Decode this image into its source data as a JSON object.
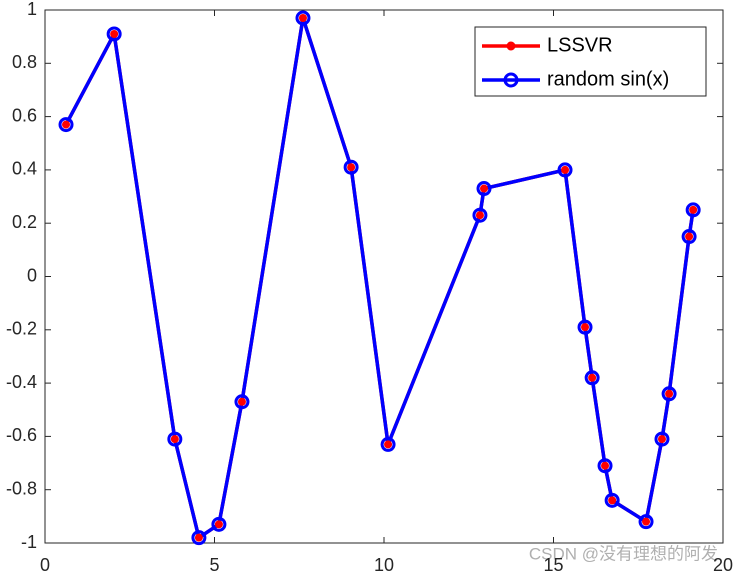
{
  "chart_data": {
    "type": "line",
    "x": [
      0.62,
      2.04,
      3.83,
      4.54,
      5.13,
      5.81,
      7.61,
      9.03,
      10.12,
      12.83,
      12.95,
      15.34,
      15.93,
      16.14,
      16.52,
      16.73,
      17.73,
      18.2,
      18.41,
      19.0,
      19.12
    ],
    "series": [
      {
        "name": "LSSVR",
        "color": "#ff0000",
        "marker": "filled",
        "values": [
          0.57,
          0.91,
          -0.61,
          -0.98,
          -0.93,
          -0.47,
          0.97,
          0.41,
          -0.63,
          0.23,
          0.33,
          0.4,
          -0.19,
          -0.38,
          -0.71,
          -0.84,
          -0.92,
          -0.61,
          -0.44,
          0.15,
          0.25
        ]
      },
      {
        "name": "random sin(x)",
        "color": "#0000ff",
        "marker": "open",
        "values": [
          0.57,
          0.91,
          -0.61,
          -0.98,
          -0.93,
          -0.47,
          0.97,
          0.41,
          -0.63,
          0.23,
          0.33,
          0.4,
          -0.19,
          -0.38,
          -0.71,
          -0.84,
          -0.92,
          -0.61,
          -0.44,
          0.15,
          0.25
        ]
      }
    ],
    "xlim": [
      0,
      20
    ],
    "xticks": [
      0,
      5,
      10,
      15,
      20
    ],
    "ylim": [
      -1,
      1
    ],
    "yticks": [
      -1,
      -0.8,
      -0.6,
      -0.4,
      -0.2,
      0,
      0.2,
      0.4,
      0.6,
      0.8,
      1
    ],
    "grid": false,
    "legend": "northeast",
    "watermark": "CSDN @没有理想的阿发"
  }
}
